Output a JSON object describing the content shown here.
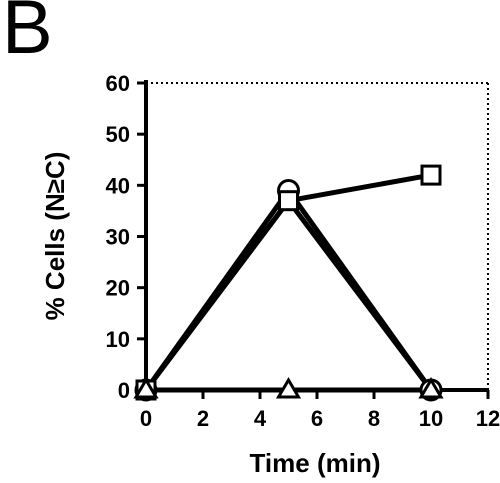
{
  "panel_label": "B",
  "chart_data": {
    "type": "line",
    "title": "",
    "xlabel": "Time (min)",
    "ylabel": "% Cells (N≥C)",
    "xlim": [
      0,
      12
    ],
    "ylim": [
      0,
      60
    ],
    "xticks": [
      0,
      2,
      4,
      6,
      8,
      10,
      12
    ],
    "yticks": [
      0,
      10,
      20,
      30,
      40,
      50,
      60
    ],
    "grid": false,
    "legend": "none",
    "series": [
      {
        "marker": "circle",
        "x": [
          0,
          5,
          10
        ],
        "y": [
          0,
          39,
          0
        ]
      },
      {
        "marker": "square",
        "x": [
          0,
          5,
          10
        ],
        "y": [
          0,
          37,
          42
        ]
      },
      {
        "marker": "triangle",
        "x": [
          0,
          5,
          10
        ],
        "y": [
          0,
          0,
          0
        ]
      },
      {
        "marker": "none",
        "x": [
          0,
          5,
          10
        ],
        "y": [
          0,
          37,
          0
        ]
      }
    ]
  }
}
